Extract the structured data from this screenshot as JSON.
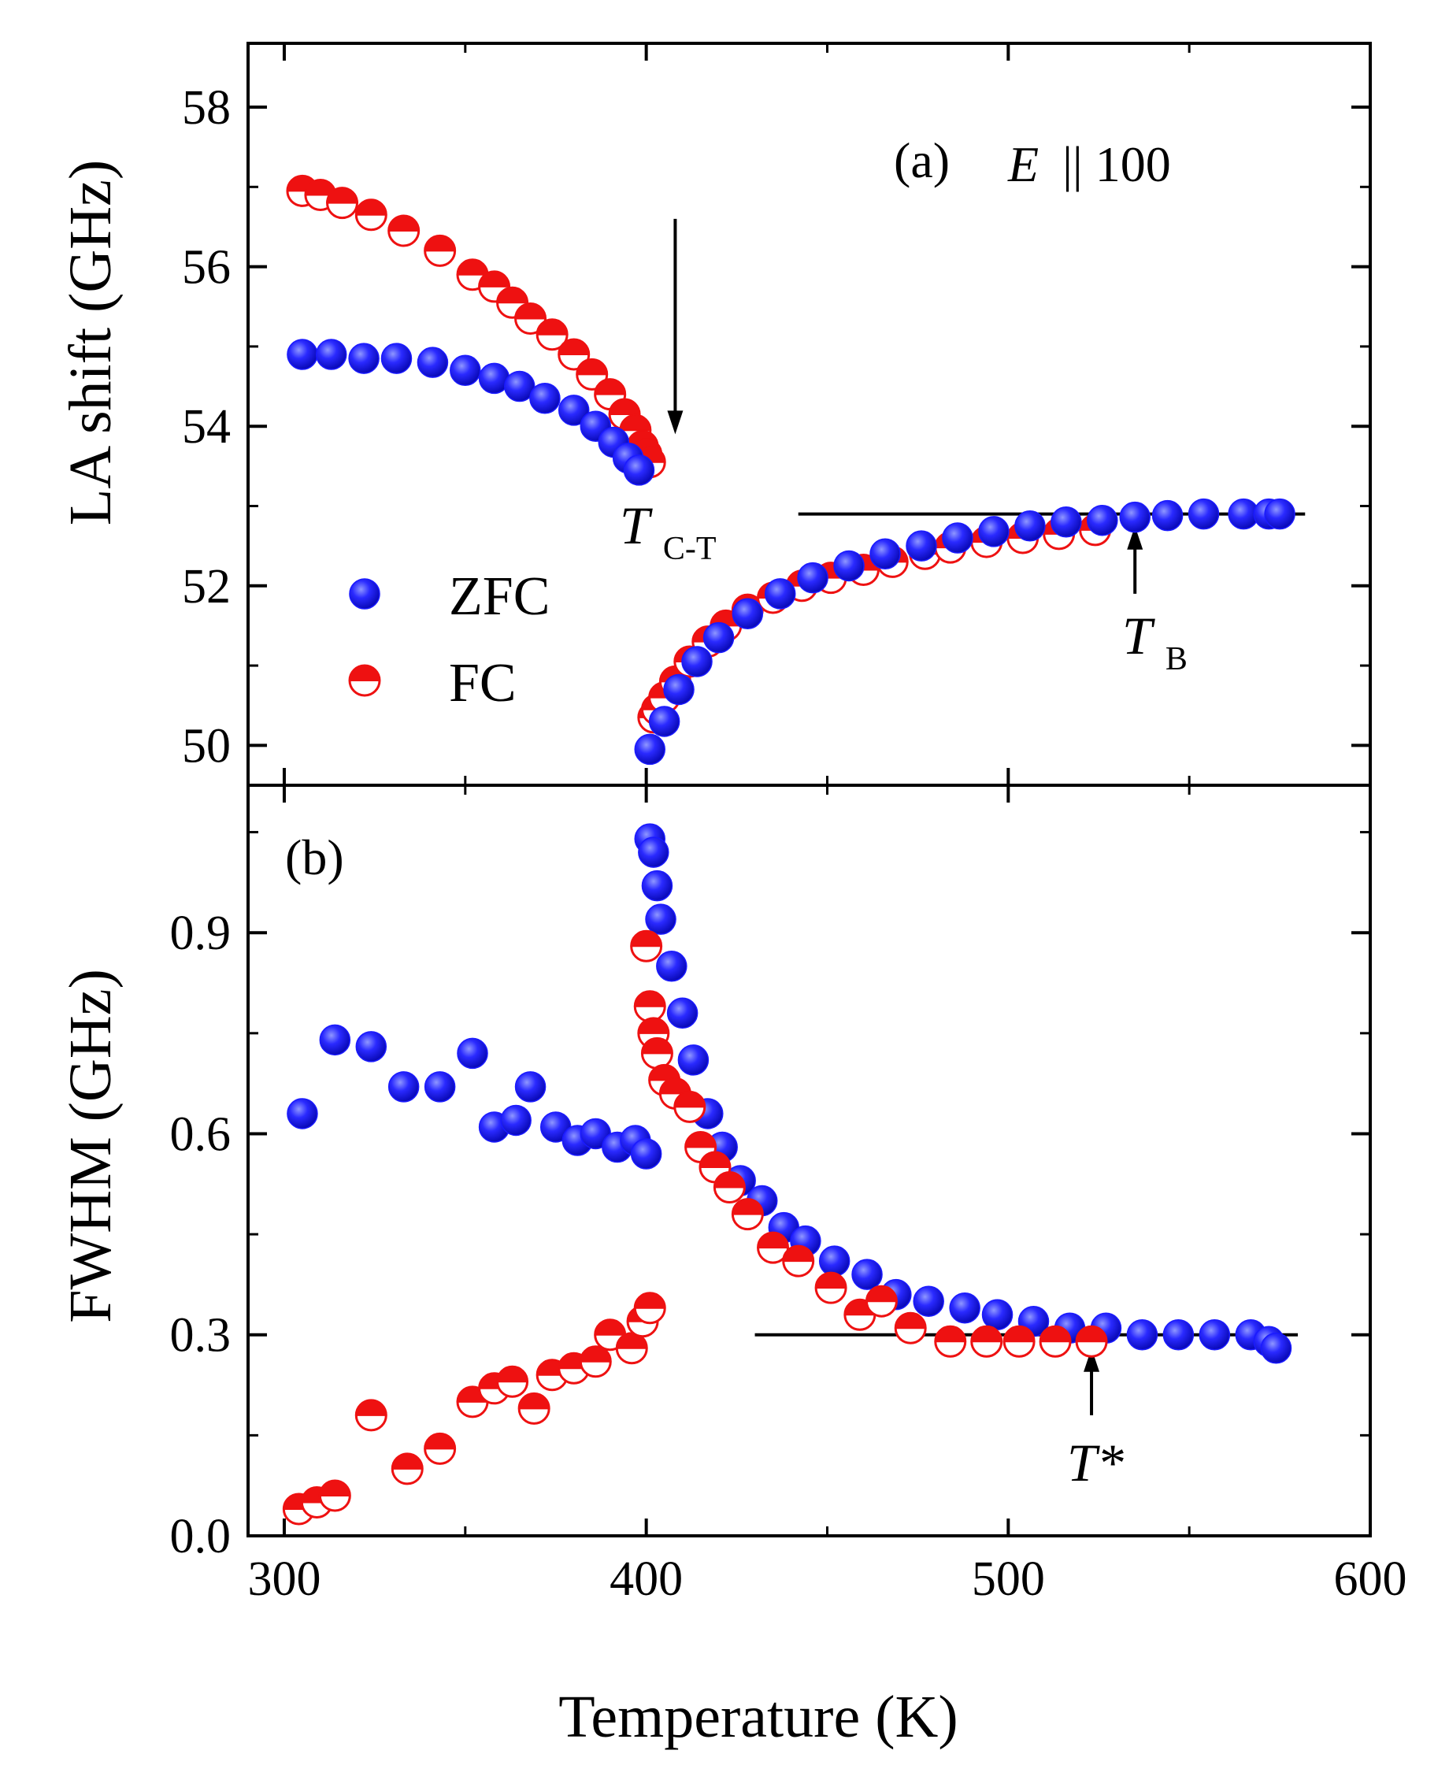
{
  "chart_data": {
    "type": "scatter",
    "xlabel": "Temperature (K)",
    "xlim": [
      290,
      600
    ],
    "xticks": [
      "300",
      "400",
      "500",
      "600"
    ],
    "colors": {
      "zfc": "#1a1aff",
      "fc": "#ee1111",
      "axis": "#000000"
    },
    "legend": {
      "placement": "middle-left of panel (a)",
      "entries": [
        {
          "key": "zfc",
          "label": "ZFC"
        },
        {
          "key": "fc",
          "label": "FC"
        }
      ]
    },
    "panels": [
      {
        "id": "a",
        "panel_label": "(a)",
        "field_label": {
          "symbol": "E",
          "text": "|| 100"
        },
        "ylabel": "LA shift (GHz)",
        "ylim": [
          49.5,
          58.8
        ],
        "yticks": [
          "50",
          "52",
          "54",
          "56",
          "58"
        ],
        "series": [
          {
            "key": "zfc",
            "name": "ZFC",
            "x": [
              305,
              313,
              322,
              331,
              341,
              350,
              358,
              365,
              372,
              380,
              386,
              391,
              395,
              398,
              401,
              405,
              409,
              414,
              420,
              428,
              437,
              446,
              456,
              466,
              476,
              486,
              496,
              506,
              516,
              526,
              535,
              544,
              554,
              565,
              572,
              575
            ],
            "y": [
              54.9,
              54.9,
              54.85,
              54.85,
              54.8,
              54.7,
              54.6,
              54.5,
              54.35,
              54.2,
              54.0,
              53.8,
              53.6,
              53.45,
              49.95,
              50.3,
              50.7,
              51.05,
              51.35,
              51.65,
              51.9,
              52.1,
              52.25,
              52.4,
              52.5,
              52.6,
              52.68,
              52.75,
              52.8,
              52.82,
              52.86,
              52.88,
              52.9,
              52.9,
              52.9,
              52.9
            ]
          },
          {
            "key": "fc",
            "name": "FC",
            "x": [
              305,
              310,
              316,
              324,
              333,
              343,
              352,
              358,
              363,
              368,
              374,
              380,
              385,
              390,
              394,
              397,
              399,
              400,
              401,
              402,
              403,
              405,
              408,
              412,
              417,
              422,
              428,
              435,
              443,
              451,
              460,
              468,
              477,
              484,
              494,
              504,
              514,
              524
            ],
            "y": [
              56.95,
              56.9,
              56.8,
              56.65,
              56.45,
              56.2,
              55.9,
              55.75,
              55.55,
              55.35,
              55.15,
              54.9,
              54.65,
              54.4,
              54.15,
              53.95,
              53.75,
              53.65,
              53.55,
              50.35,
              50.45,
              50.6,
              50.8,
              51.05,
              51.3,
              51.5,
              51.7,
              51.85,
              52.0,
              52.1,
              52.2,
              52.3,
              52.4,
              52.48,
              52.55,
              52.6,
              52.65,
              52.7
            ]
          }
        ],
        "guide_line": {
          "x": [
            442,
            582
          ],
          "y": 52.9
        },
        "annotations": [
          {
            "id": "tct",
            "label": "T",
            "sub": "C-T",
            "arrow_x": 408,
            "arrow_from_y": 56.6,
            "arrow_to_y": 53.9
          },
          {
            "id": "tb",
            "label": "T",
            "sub": "B",
            "arrow_x": 535,
            "arrow_from_y": 51.9,
            "arrow_to_y": 52.75
          }
        ]
      },
      {
        "id": "b",
        "panel_label": "(b)",
        "ylabel": "FWHM (GHz)",
        "ylim": [
          0,
          1.12
        ],
        "yticks": [
          "0.0",
          "0.3",
          "0.6",
          "0.9"
        ],
        "series": [
          {
            "key": "zfc",
            "name": "ZFC",
            "x": [
              305,
              314,
              324,
              333,
              343,
              352,
              358,
              364,
              368,
              375,
              381,
              386,
              392,
              397,
              400,
              401,
              402,
              403,
              404,
              407,
              410,
              413,
              417,
              421,
              426,
              432,
              438,
              444,
              452,
              461,
              469,
              478,
              488,
              497,
              507,
              517,
              527,
              537,
              547,
              557,
              567,
              572,
              574
            ],
            "y": [
              0.63,
              0.74,
              0.73,
              0.67,
              0.67,
              0.72,
              0.61,
              0.62,
              0.67,
              0.61,
              0.59,
              0.6,
              0.58,
              0.59,
              0.57,
              1.04,
              1.02,
              0.97,
              0.92,
              0.85,
              0.78,
              0.71,
              0.63,
              0.58,
              0.53,
              0.5,
              0.46,
              0.44,
              0.41,
              0.39,
              0.36,
              0.35,
              0.34,
              0.33,
              0.32,
              0.31,
              0.31,
              0.3,
              0.3,
              0.3,
              0.3,
              0.29,
              0.28
            ]
          },
          {
            "key": "fc",
            "name": "FC",
            "x": [
              304,
              309,
              314,
              324,
              334,
              343,
              352,
              358,
              363,
              369,
              374,
              380,
              386,
              390,
              396,
              399,
              401,
              400,
              401,
              402,
              403,
              405,
              408,
              412,
              415,
              419,
              423,
              428,
              435,
              442,
              451,
              459,
              465,
              473,
              484,
              494,
              503,
              513,
              523
            ],
            "y": [
              0.04,
              0.05,
              0.06,
              0.18,
              0.1,
              0.13,
              0.2,
              0.22,
              0.23,
              0.19,
              0.24,
              0.25,
              0.26,
              0.3,
              0.28,
              0.32,
              0.34,
              0.88,
              0.79,
              0.75,
              0.72,
              0.68,
              0.66,
              0.64,
              0.58,
              0.55,
              0.52,
              0.48,
              0.43,
              0.41,
              0.37,
              0.33,
              0.35,
              0.31,
              0.29,
              0.29,
              0.29,
              0.29,
              0.29
            ]
          }
        ],
        "guide_line": {
          "x": [
            430,
            580
          ],
          "y": 0.3
        },
        "annotations": [
          {
            "id": "tstar",
            "label": "T*",
            "arrow_x": 523,
            "arrow_from_y": 0.18,
            "arrow_to_y": 0.28
          }
        ]
      }
    ]
  }
}
